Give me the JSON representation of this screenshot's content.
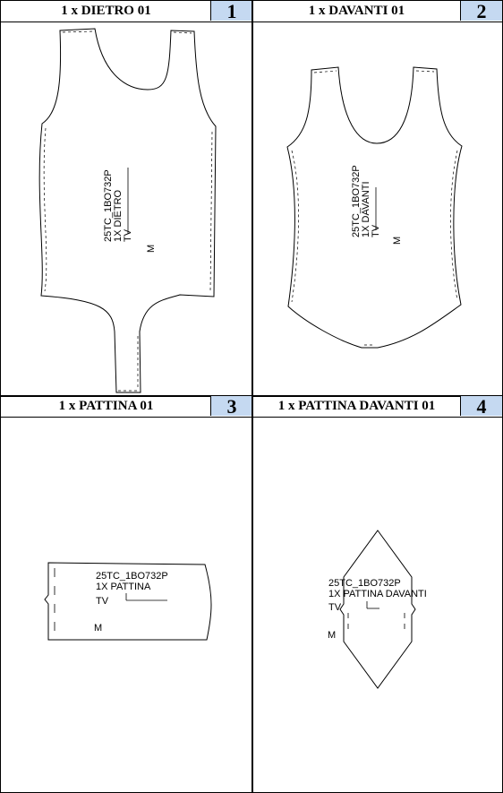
{
  "panels": [
    {
      "title": "1 x DIETRO 01",
      "number": "1",
      "label": {
        "code": "25TC_1BO732P",
        "name": "1X DIETRO",
        "grain": "TV",
        "size": "M"
      }
    },
    {
      "title": "1 x DAVANTI 01",
      "number": "2",
      "label": {
        "code": "25TC_1BO732P",
        "name": "1X DAVANTI",
        "grain": "TV",
        "size": "M"
      }
    },
    {
      "title": "1 x PATTINA 01",
      "number": "3",
      "label": {
        "code": "25TC_1BO732P",
        "name": "1X PATTINA",
        "grain": "TV",
        "size": "M"
      }
    },
    {
      "title": "1 x PATTINA DAVANTI 01",
      "number": "4",
      "label": {
        "code": "25TC_1BO732P",
        "name": "1X PATTINA DAVANTI",
        "grain": "TV",
        "size": "M"
      }
    }
  ],
  "colors": {
    "number_cell_bg": "#c5d9f1",
    "lines": "#000000"
  }
}
